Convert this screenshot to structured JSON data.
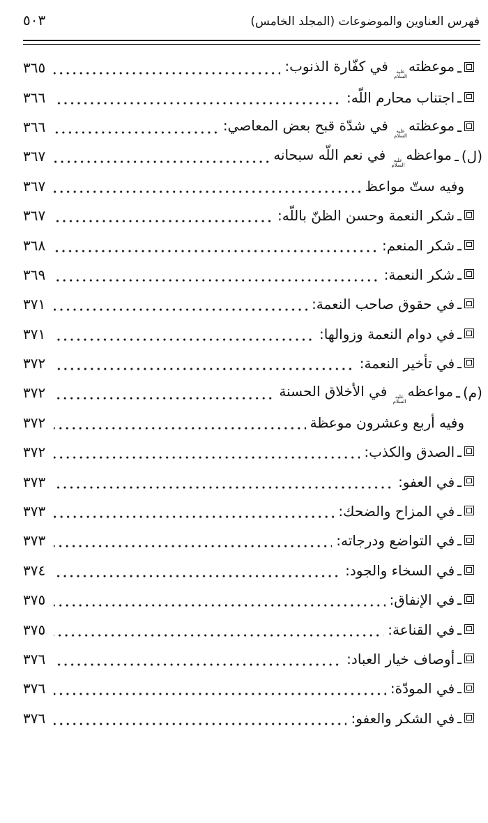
{
  "header": {
    "title": "فهرس العناوين والموضوعات (المجلد الخامس)",
    "page_number": "٥٠٣"
  },
  "honorific": {
    "top": "عليه",
    "bottom": "السلام"
  },
  "dash": "ـ",
  "entries": [
    {
      "marker": "square",
      "label": "",
      "before": "موعظته",
      "honorific": true,
      "after": "في كفّارة الذنوب:",
      "page": "٣٦٥"
    },
    {
      "marker": "square",
      "label": "",
      "before": "اجتناب محارم اللّه:",
      "honorific": false,
      "after": "",
      "page": "٣٦٦"
    },
    {
      "marker": "square",
      "label": "",
      "before": "موعظته",
      "honorific": true,
      "after": "في شدّة قبح بعض المعاصي:",
      "page": "٣٦٦"
    },
    {
      "marker": "label",
      "label": "(ل)",
      "before": "مواعظه",
      "honorific": true,
      "after": "في نعم اللّه سبحانه",
      "page": "٣٦٧"
    },
    {
      "marker": "none",
      "label": "",
      "before": "وفيه ستّ مواعظ",
      "honorific": false,
      "after": "",
      "page": "٣٦٧"
    },
    {
      "marker": "square",
      "label": "",
      "before": "شكر النعمة وحسن الظنّ باللّه:",
      "honorific": false,
      "after": "",
      "page": "٣٦٧"
    },
    {
      "marker": "square",
      "label": "",
      "before": "شكر المنعم:",
      "honorific": false,
      "after": "",
      "page": "٣٦٨"
    },
    {
      "marker": "square",
      "label": "",
      "before": "شكر النعمة:",
      "honorific": false,
      "after": "",
      "page": "٣٦٩"
    },
    {
      "marker": "square",
      "label": "",
      "before": "في حقوق صاحب النعمة:",
      "honorific": false,
      "after": "",
      "page": "٣٧١"
    },
    {
      "marker": "square",
      "label": "",
      "before": "في دوام النعمة وزوالها:",
      "honorific": false,
      "after": "",
      "page": "٣٧١"
    },
    {
      "marker": "square",
      "label": "",
      "before": "في تأخير النعمة:",
      "honorific": false,
      "after": "",
      "page": "٣٧٢"
    },
    {
      "marker": "label",
      "label": "(م)",
      "before": "مواعظه",
      "honorific": true,
      "after": "في الأخلاق الحسنة",
      "page": "٣٧٢"
    },
    {
      "marker": "none",
      "label": "",
      "before": "وفيه أربع وعشرون موعظة",
      "honorific": false,
      "after": "",
      "page": "٣٧٢"
    },
    {
      "marker": "square",
      "label": "",
      "before": "الصدق والكذب:",
      "honorific": false,
      "after": "",
      "page": "٣٧٢"
    },
    {
      "marker": "square",
      "label": "",
      "before": "في العفو:",
      "honorific": false,
      "after": "",
      "page": "٣٧٣"
    },
    {
      "marker": "square",
      "label": "",
      "before": "في المزاح والضحك:",
      "honorific": false,
      "after": "",
      "page": "٣٧٣"
    },
    {
      "marker": "square",
      "label": "",
      "before": "في التواضع ودرجاته:",
      "honorific": false,
      "after": "",
      "page": "٣٧٣"
    },
    {
      "marker": "square",
      "label": "",
      "before": "في السخاء والجود:",
      "honorific": false,
      "after": "",
      "page": "٣٧٤"
    },
    {
      "marker": "square",
      "label": "",
      "before": "في الإنفاق:",
      "honorific": false,
      "after": "",
      "page": "٣٧٥"
    },
    {
      "marker": "square",
      "label": "",
      "before": "في القناعة:",
      "honorific": false,
      "after": "",
      "page": "٣٧٥"
    },
    {
      "marker": "square",
      "label": "",
      "before": "أوصاف خيار العباد:",
      "honorific": false,
      "after": "",
      "page": "٣٧٦"
    },
    {
      "marker": "square",
      "label": "",
      "before": "في المودّة:",
      "honorific": false,
      "after": "",
      "page": "٣٧٦"
    },
    {
      "marker": "square",
      "label": "",
      "before": "في الشكر والعفو:",
      "honorific": false,
      "after": "",
      "page": "٣٧٦"
    }
  ]
}
